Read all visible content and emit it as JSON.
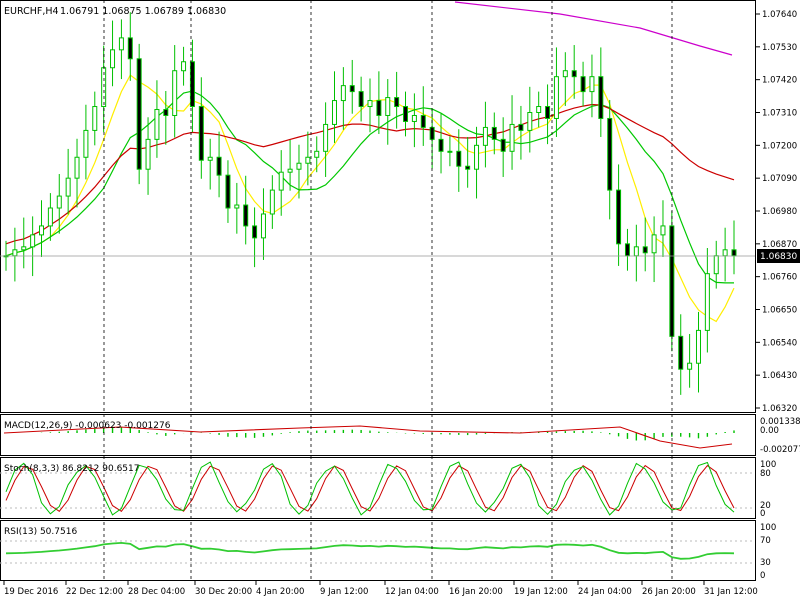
{
  "window": {
    "symbol_header": "EURCHF,H4",
    "ohlc": "1.06791 1.06875 1.06789 1.06830",
    "current_price": "1.06830"
  },
  "colors": {
    "bull": "#00c000",
    "bear": "#00c000",
    "ma_fast": "#ffee00",
    "ma_mid": "#00c800",
    "ma_slow": "#cc0000",
    "ma_long": "#cc00cc",
    "signal": "#cc0000",
    "stoch_main": "#00c000",
    "stoch_signal": "#cc0000",
    "rsi": "#32cd32",
    "current_price_bg": "#000000"
  },
  "price_axis": {
    "ticks": [
      "1.07640",
      "1.07530",
      "1.07420",
      "1.07310",
      "1.07200",
      "1.07090",
      "1.06980",
      "1.06870",
      "1.06760",
      "1.06650",
      "1.06540",
      "1.06430",
      "1.06320"
    ]
  },
  "macd": {
    "label": "MACD(12,26,9) -0.000623 -0.001276",
    "ticks": [
      "0.001338",
      "0.00",
      "-0.002077"
    ]
  },
  "stoch": {
    "label": "Stoch(8,3,3) 86.8212 90.6517",
    "ticks": [
      "100",
      "80",
      "20",
      "0"
    ]
  },
  "rsi": {
    "label": "RSI(13) 50.7516",
    "ticks": [
      "100",
      "70",
      "30",
      "0"
    ]
  },
  "time_axis": {
    "labels": [
      "19 Dec 2016",
      "22 Dec 12:00",
      "28 Dec 04:00",
      "30 Dec 20:00",
      "4 Jan 20:00",
      "9 Jan 12:00",
      "12 Jan 04:00",
      "16 Jan 20:00",
      "19 Jan 12:00",
      "24 Jan 04:00",
      "26 Jan 20:00",
      "31 Jan 12:00"
    ]
  },
  "chart_data": {
    "type": "candlestick",
    "timeframe": "H4",
    "price_range": [
      1.0627,
      1.0771
    ],
    "candles_close_approx": [
      1.0683,
      1.0685,
      1.0686,
      1.069,
      1.0693,
      1.0699,
      1.0703,
      1.0709,
      1.0716,
      1.0725,
      1.0733,
      1.0746,
      1.0752,
      1.0756,
      1.0749,
      1.0712,
      1.0722,
      1.0732,
      1.073,
      1.0745,
      1.0748,
      1.0733,
      1.0715,
      1.0716,
      1.071,
      1.0699,
      1.07,
      1.0693,
      1.0689,
      1.0697,
      1.0705,
      1.0711,
      1.0712,
      1.0714,
      1.0716,
      1.0718,
      1.0727,
      1.0735,
      1.074,
      1.0738,
      1.0733,
      1.0735,
      1.073,
      1.0736,
      1.0733,
      1.0728,
      1.073,
      1.0726,
      1.0722,
      1.0718,
      1.0718,
      1.0713,
      1.0712,
      1.072,
      1.0726,
      1.0722,
      1.0718,
      1.0727,
      1.0725,
      1.0731,
      1.0733,
      1.0729,
      1.0743,
      1.0745,
      1.0743,
      1.0738,
      1.0743,
      1.0729,
      1.0705,
      1.0687,
      1.0683,
      1.0686,
      1.0684,
      1.069,
      1.0693,
      1.0656,
      1.0645,
      1.0647,
      1.0658,
      1.0677,
      1.0683,
      1.0685,
      1.0683
    ]
  }
}
